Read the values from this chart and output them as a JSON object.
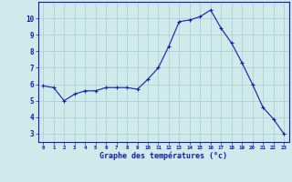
{
  "hours": [
    0,
    1,
    2,
    3,
    4,
    5,
    6,
    7,
    8,
    9,
    10,
    11,
    12,
    13,
    14,
    15,
    16,
    17,
    18,
    19,
    20,
    21,
    22,
    23
  ],
  "temps": [
    5.9,
    5.8,
    5.0,
    5.4,
    5.6,
    5.6,
    5.8,
    5.8,
    5.8,
    5.7,
    6.3,
    7.0,
    8.3,
    9.8,
    9.9,
    10.1,
    10.5,
    9.4,
    8.5,
    7.3,
    6.0,
    4.6,
    3.9,
    3.0
  ],
  "xlim": [
    -0.5,
    23.5
  ],
  "ylim": [
    2.5,
    11.0
  ],
  "yticks": [
    3,
    4,
    5,
    6,
    7,
    8,
    9,
    10
  ],
  "xticks": [
    0,
    1,
    2,
    3,
    4,
    5,
    6,
    7,
    8,
    9,
    10,
    11,
    12,
    13,
    14,
    15,
    16,
    17,
    18,
    19,
    20,
    21,
    22,
    23
  ],
  "xlabel": "Graphe des températures (°c)",
  "line_color": "#1a1aaa",
  "marker_color": "#1a1aaa",
  "bg_color": "#ceeaea",
  "grid_color": "#aacccc",
  "tick_label_color": "#1a1aaa",
  "xlabel_color": "#1a1aaa"
}
